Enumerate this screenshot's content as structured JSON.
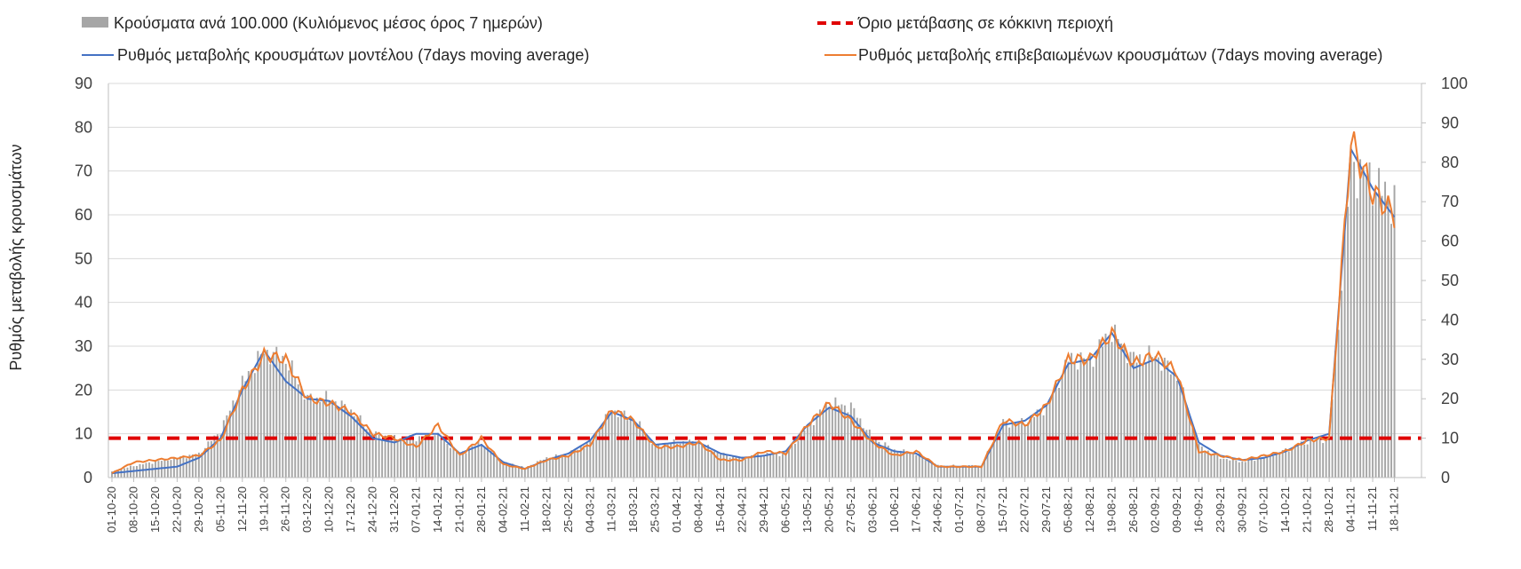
{
  "chart_data": {
    "type": "bar+line",
    "legend": {
      "bars_label": "Κρούσματα ανά 100.000 (Κυλιόμενος μέσος όρος 7 ημερών)",
      "threshold_label": "Όριο μετάβασης σε κόκκινη περιοχή",
      "model_label": "Ρυθμός μεταβολής κρουσμάτων μοντέλου (7days moving average)",
      "confirmed_label": "Ρυθμός μεταβολής επιβεβαιωμένων κρουσμάτων (7days moving average)"
    },
    "ylabel_left": "Ρυθμός μεταβολής κρουσμάτων",
    "ylim_left": [
      0,
      90
    ],
    "ylim_right": [
      0,
      100
    ],
    "yticks_left": [
      "0",
      "10",
      "20",
      "30",
      "40",
      "50",
      "60",
      "70",
      "80",
      "90"
    ],
    "yticks_right": [
      "0",
      "10",
      "20",
      "30",
      "40",
      "50",
      "60",
      "70",
      "80",
      "90",
      "100"
    ],
    "x_tick_labels": [
      "01-10-20",
      "08-10-20",
      "15-10-20",
      "22-10-20",
      "29-10-20",
      "05-11-20",
      "12-11-20",
      "19-11-20",
      "26-11-20",
      "03-12-20",
      "10-12-20",
      "17-12-20",
      "24-12-20",
      "31-12-20",
      "07-01-21",
      "14-01-21",
      "21-01-21",
      "28-01-21",
      "04-02-21",
      "11-02-21",
      "18-02-21",
      "25-02-21",
      "04-03-21",
      "11-03-21",
      "18-03-21",
      "25-03-21",
      "01-04-21",
      "08-04-21",
      "15-04-21",
      "22-04-21",
      "29-04-21",
      "06-05-21",
      "13-05-21",
      "20-05-21",
      "27-05-21",
      "03-06-21",
      "10-06-21",
      "17-06-21",
      "24-06-21",
      "01-07-21",
      "08-07-21",
      "15-07-21",
      "22-07-21",
      "29-07-21",
      "05-08-21",
      "12-08-21",
      "19-08-21",
      "26-08-21",
      "02-09-21",
      "09-09-21",
      "16-09-21",
      "23-09-21",
      "30-09-21",
      "07-10-21",
      "14-10-21",
      "21-10-21",
      "28-10-21",
      "04-11-21",
      "11-11-21",
      "18-11-21"
    ],
    "threshold_value": 9,
    "bars_weekly_right_axis": [
      1.5,
      3,
      4,
      5,
      6,
      12,
      24,
      32,
      30,
      20,
      20,
      17,
      11,
      10,
      10,
      11,
      6,
      9,
      4,
      2.5,
      5,
      6,
      9,
      17,
      15,
      8,
      9,
      9,
      6,
      5,
      6,
      6,
      13,
      19,
      18,
      10,
      7,
      6,
      3,
      3,
      3,
      14,
      14,
      18,
      30,
      30,
      37,
      30,
      31,
      26,
      8,
      5,
      4,
      5,
      7,
      9,
      10,
      80,
      75,
      70
    ],
    "confirmed_weekly": [
      1,
      3.5,
      4,
      4.5,
      5,
      8.5,
      20,
      28,
      27,
      18,
      17,
      15,
      10,
      9,
      7,
      12,
      5,
      9,
      3,
      2,
      4,
      5,
      7.5,
      15.5,
      13,
      7,
      7,
      8,
      4,
      4,
      6,
      5.5,
      12,
      17,
      13,
      8,
      5,
      6,
      2.5,
      2.5,
      2.5,
      13,
      12,
      16.5,
      27,
      27,
      33,
      26,
      28,
      24,
      6,
      5,
      4,
      5,
      6,
      8.5,
      9,
      77,
      65,
      60
    ],
    "model_weekly": [
      1,
      1.5,
      2,
      2.5,
      4.5,
      9,
      20,
      29,
      22,
      18,
      17.5,
      14,
      9,
      8,
      10,
      10,
      5.5,
      7.5,
      3.5,
      2,
      4,
      5.5,
      8.5,
      15,
      13,
      7.5,
      8,
      8,
      5.5,
      4.5,
      5,
      6,
      12,
      16,
      14,
      8,
      6,
      5.5,
      2.5,
      2.5,
      2.5,
      12,
      13,
      16.5,
      26,
      27,
      33,
      25,
      27,
      23,
      8,
      5,
      4,
      4.5,
      6,
      8.5,
      10,
      75,
      66,
      59.5
    ]
  }
}
